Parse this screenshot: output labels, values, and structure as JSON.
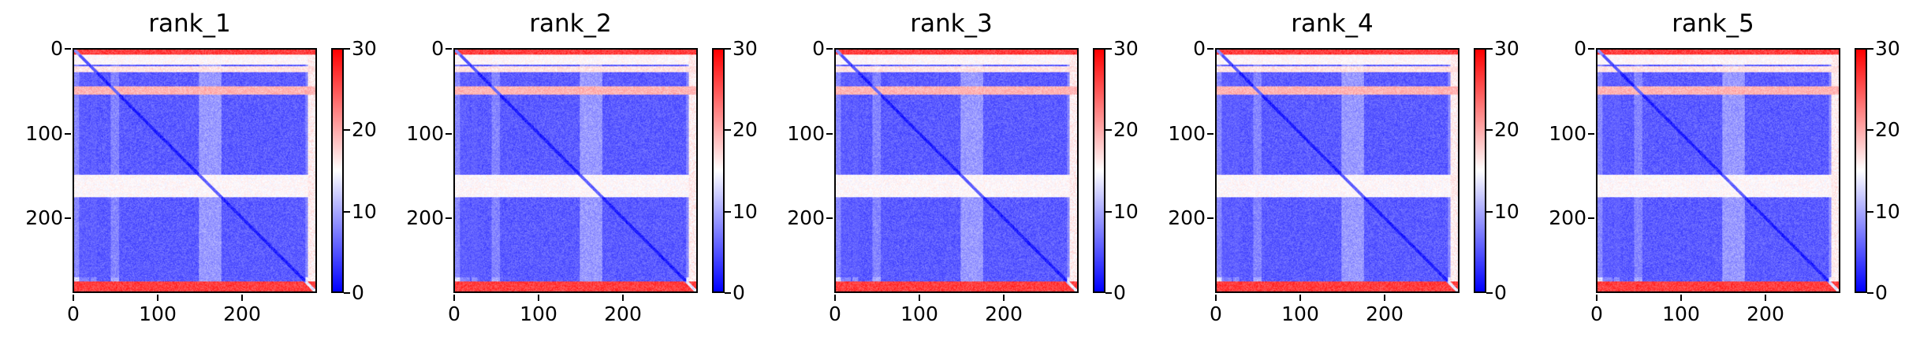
{
  "chart_data": [
    {
      "type": "heatmap",
      "title": "rank_1",
      "xlabel": "",
      "ylabel": "",
      "xlim": [
        0,
        290
      ],
      "ylim": [
        290,
        0
      ],
      "x_ticks": [
        "0",
        "100",
        "200"
      ],
      "y_ticks": [
        "0",
        "100",
        "200"
      ],
      "colorbar": {
        "range": [
          0,
          30
        ],
        "ticks": [
          "0",
          "10",
          "20",
          "30"
        ],
        "colormap": "bwr",
        "colors": [
          "#0000ff",
          "#ffffff",
          "#ff0000"
        ]
      },
      "grid": false
    },
    {
      "type": "heatmap",
      "title": "rank_2",
      "xlabel": "",
      "ylabel": "",
      "xlim": [
        0,
        290
      ],
      "ylim": [
        290,
        0
      ],
      "x_ticks": [
        "0",
        "100",
        "200"
      ],
      "y_ticks": [
        "0",
        "100",
        "200"
      ],
      "colorbar": {
        "range": [
          0,
          30
        ],
        "ticks": [
          "0",
          "10",
          "20",
          "30"
        ],
        "colormap": "bwr",
        "colors": [
          "#0000ff",
          "#ffffff",
          "#ff0000"
        ]
      },
      "grid": false
    },
    {
      "type": "heatmap",
      "title": "rank_3",
      "xlabel": "",
      "ylabel": "",
      "xlim": [
        0,
        290
      ],
      "ylim": [
        290,
        0
      ],
      "x_ticks": [
        "0",
        "100",
        "200"
      ],
      "y_ticks": [
        "0",
        "100",
        "200"
      ],
      "colorbar": {
        "range": [
          0,
          30
        ],
        "ticks": [
          "0",
          "10",
          "20",
          "30"
        ],
        "colormap": "bwr",
        "colors": [
          "#0000ff",
          "#ffffff",
          "#ff0000"
        ]
      },
      "grid": false
    },
    {
      "type": "heatmap",
      "title": "rank_4",
      "xlabel": "",
      "ylabel": "",
      "xlim": [
        0,
        290
      ],
      "ylim": [
        290,
        0
      ],
      "x_ticks": [
        "0",
        "100",
        "200"
      ],
      "y_ticks": [
        "0",
        "100",
        "200"
      ],
      "colorbar": {
        "range": [
          0,
          30
        ],
        "ticks": [
          "0",
          "10",
          "20",
          "30"
        ],
        "colormap": "bwr",
        "colors": [
          "#0000ff",
          "#ffffff",
          "#ff0000"
        ]
      },
      "grid": false
    },
    {
      "type": "heatmap",
      "title": "rank_5",
      "xlabel": "",
      "ylabel": "",
      "xlim": [
        0,
        290
      ],
      "ylim": [
        290,
        0
      ],
      "x_ticks": [
        "0",
        "100",
        "200"
      ],
      "y_ticks": [
        "0",
        "100",
        "200"
      ],
      "colorbar": {
        "range": [
          0,
          30
        ],
        "ticks": [
          "0",
          "10",
          "20",
          "30"
        ],
        "colormap": "bwr",
        "colors": [
          "#0000ff",
          "#ffffff",
          "#ff0000"
        ]
      },
      "grid": false
    }
  ]
}
